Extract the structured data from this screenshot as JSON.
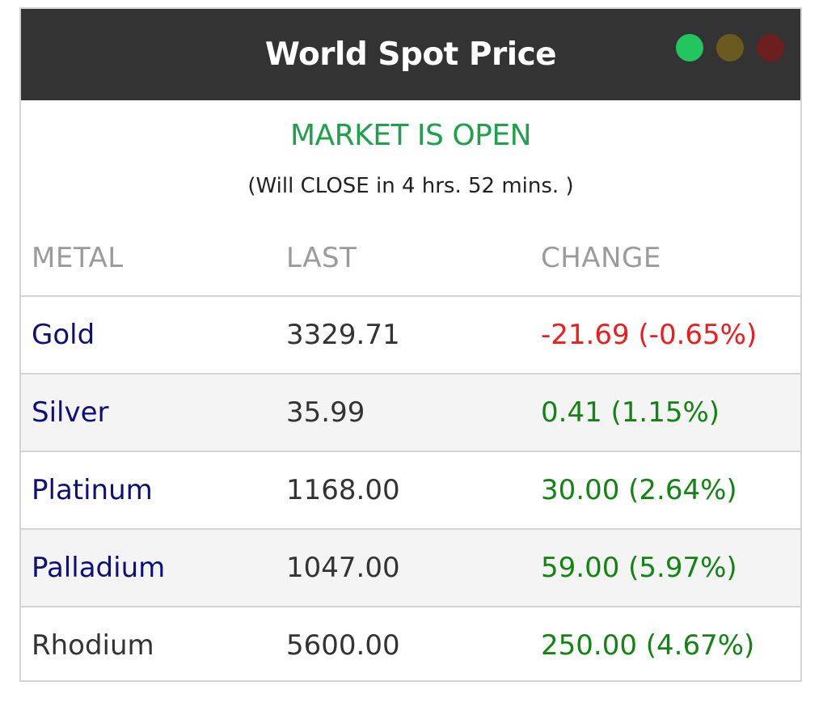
{
  "header": {
    "title": "World Spot Price",
    "indicators": [
      {
        "name": "status-light-green",
        "color": "#22c55e"
      },
      {
        "name": "status-light-amber",
        "color": "#6b5a1f"
      },
      {
        "name": "status-light-red",
        "color": "#6b1f1f"
      }
    ]
  },
  "market": {
    "status": "MARKET IS OPEN",
    "status_color": "#1fa04a",
    "countdown": "(Will CLOSE in 4 hrs. 52 mins. )"
  },
  "table": {
    "columns": [
      "METAL",
      "LAST",
      "CHANGE"
    ],
    "rows": [
      {
        "metal": "Gold",
        "last": "3329.71",
        "change": "-21.69 (-0.65%)",
        "direction": "down",
        "linked": true
      },
      {
        "metal": "Silver",
        "last": "35.99",
        "change": "0.41 (1.15%)",
        "direction": "up",
        "linked": true
      },
      {
        "metal": "Platinum",
        "last": "1168.00",
        "change": "30.00 (2.64%)",
        "direction": "up",
        "linked": true
      },
      {
        "metal": "Palladium",
        "last": "1047.00",
        "change": "59.00 (5.97%)",
        "direction": "up",
        "linked": true
      },
      {
        "metal": "Rhodium",
        "last": "5600.00",
        "change": "250.00 (4.67%)",
        "direction": "up",
        "linked": false
      }
    ]
  },
  "colors": {
    "header_bg": "#333333",
    "positive": "#128412",
    "negative": "#ee1c1c",
    "metal_link": "#0f0f7a"
  }
}
